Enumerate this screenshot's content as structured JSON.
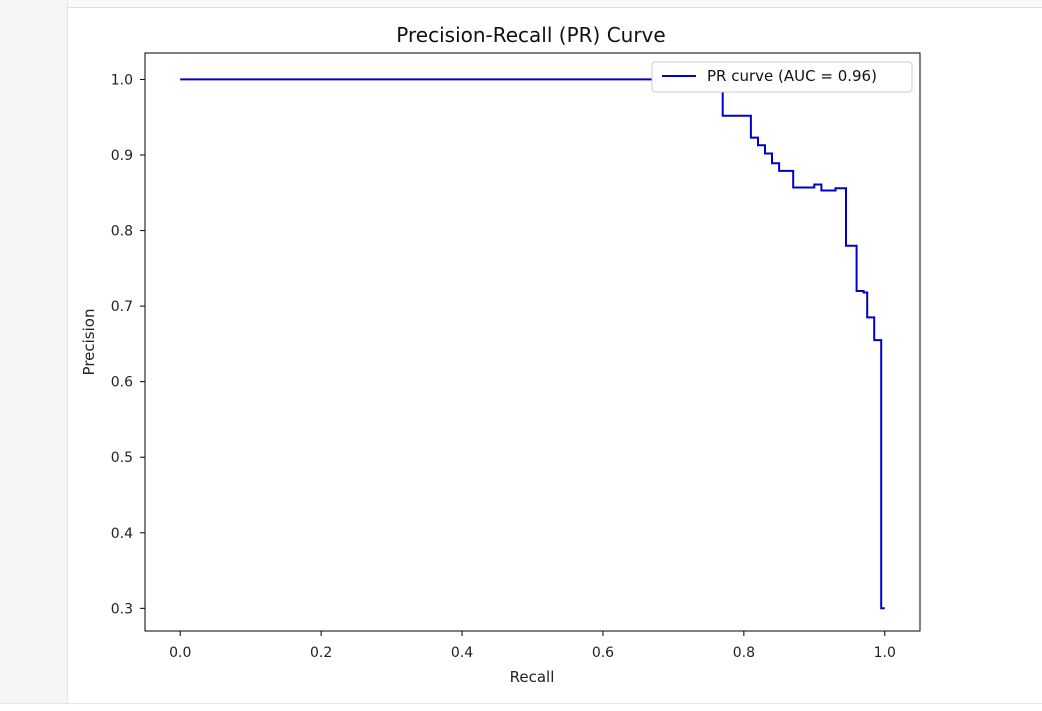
{
  "chart_data": {
    "type": "line",
    "title": "Precision-Recall (PR) Curve",
    "xlabel": "Recall",
    "ylabel": "Precision",
    "xlim": [
      -0.05,
      1.05
    ],
    "ylim": [
      0.27,
      1.035
    ],
    "xticks": [
      "0.0",
      "0.2",
      "0.4",
      "0.6",
      "0.8",
      "1.0"
    ],
    "yticks": [
      "0.3",
      "0.4",
      "0.5",
      "0.6",
      "0.7",
      "0.8",
      "0.9",
      "1.0"
    ],
    "grid": false,
    "legend_position": "top-right",
    "series": [
      {
        "name": "PR curve (AUC = 0.96)",
        "color": "#0000cc",
        "drawstyle": "steps-post",
        "x": [
          0.0,
          0.77,
          0.77,
          0.81,
          0.81,
          0.82,
          0.82,
          0.83,
          0.83,
          0.84,
          0.84,
          0.85,
          0.85,
          0.87,
          0.87,
          0.9,
          0.9,
          0.91,
          0.91,
          0.93,
          0.93,
          0.945,
          0.945,
          0.96,
          0.96,
          0.97,
          0.97,
          0.975,
          0.975,
          0.985,
          0.985,
          0.995,
          0.995,
          1.0
        ],
        "y": [
          1.0,
          1.0,
          0.952,
          0.952,
          0.923,
          0.923,
          0.913,
          0.913,
          0.902,
          0.902,
          0.889,
          0.889,
          0.879,
          0.879,
          0.857,
          0.857,
          0.861,
          0.861,
          0.853,
          0.853,
          0.856,
          0.856,
          0.78,
          0.78,
          0.72,
          0.72,
          0.718,
          0.718,
          0.685,
          0.685,
          0.655,
          0.655,
          0.3,
          0.3
        ]
      }
    ]
  }
}
